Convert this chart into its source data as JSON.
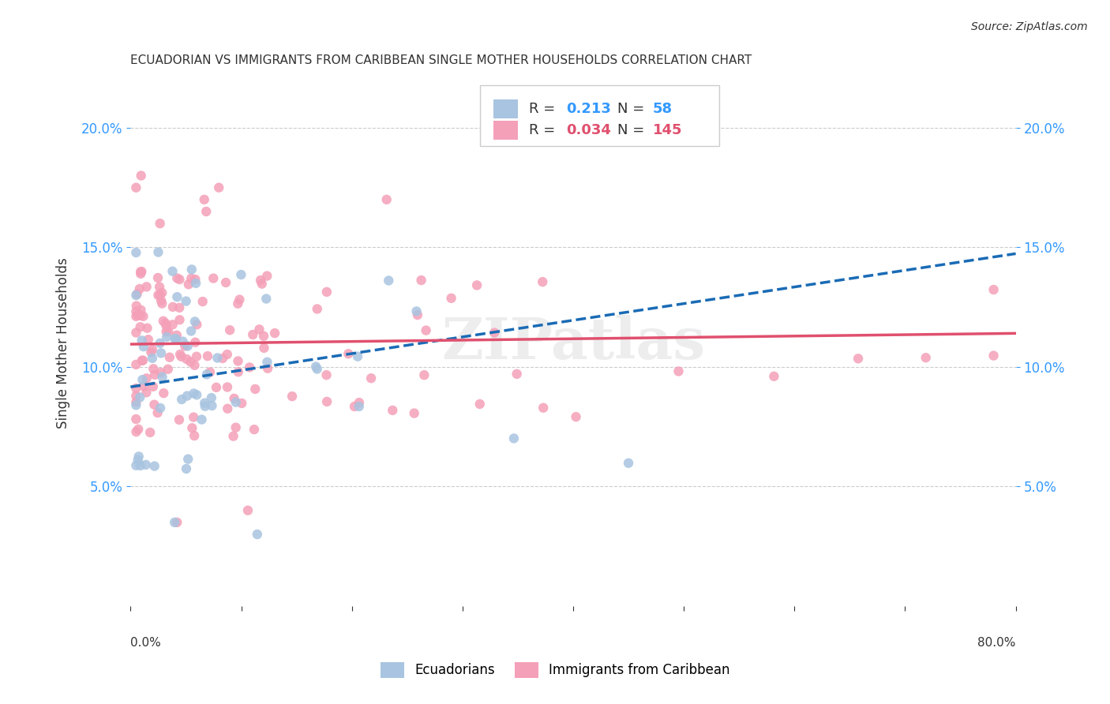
{
  "title": "ECUADORIAN VS IMMIGRANTS FROM CARIBBEAN SINGLE MOTHER HOUSEHOLDS CORRELATION CHART",
  "source": "Source: ZipAtlas.com",
  "ylabel": "Single Mother Households",
  "legend_label1": "Ecuadorians",
  "legend_label2": "Immigrants from Caribbean",
  "r1": 0.213,
  "n1": 58,
  "r2": 0.034,
  "n2": 145,
  "color1": "#a8c4e0",
  "color2": "#f4a0b8",
  "line1_color": "#1a6bb5",
  "line2_color": "#e0506e",
  "xmin": 0.0,
  "xmax": 0.8,
  "ymin": 0.0,
  "ymax": 0.22,
  "yticks": [
    0.05,
    0.1,
    0.15,
    0.2
  ],
  "ytick_labels": [
    "5.0%",
    "10.0%",
    "15.0%",
    "20.0%"
  ],
  "background_color": "#ffffff",
  "watermark": "ZIPatlas"
}
